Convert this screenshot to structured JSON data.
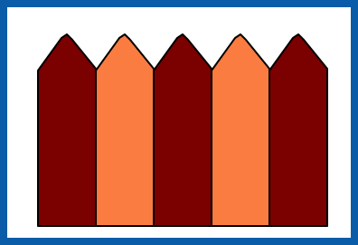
{
  "pickets": [
    {
      "color": "#7b0000"
    },
    {
      "color": "#fa7c40"
    },
    {
      "color": "#7b0000"
    },
    {
      "color": "#fa7c40"
    },
    {
      "color": "#7b0000"
    }
  ]
}
